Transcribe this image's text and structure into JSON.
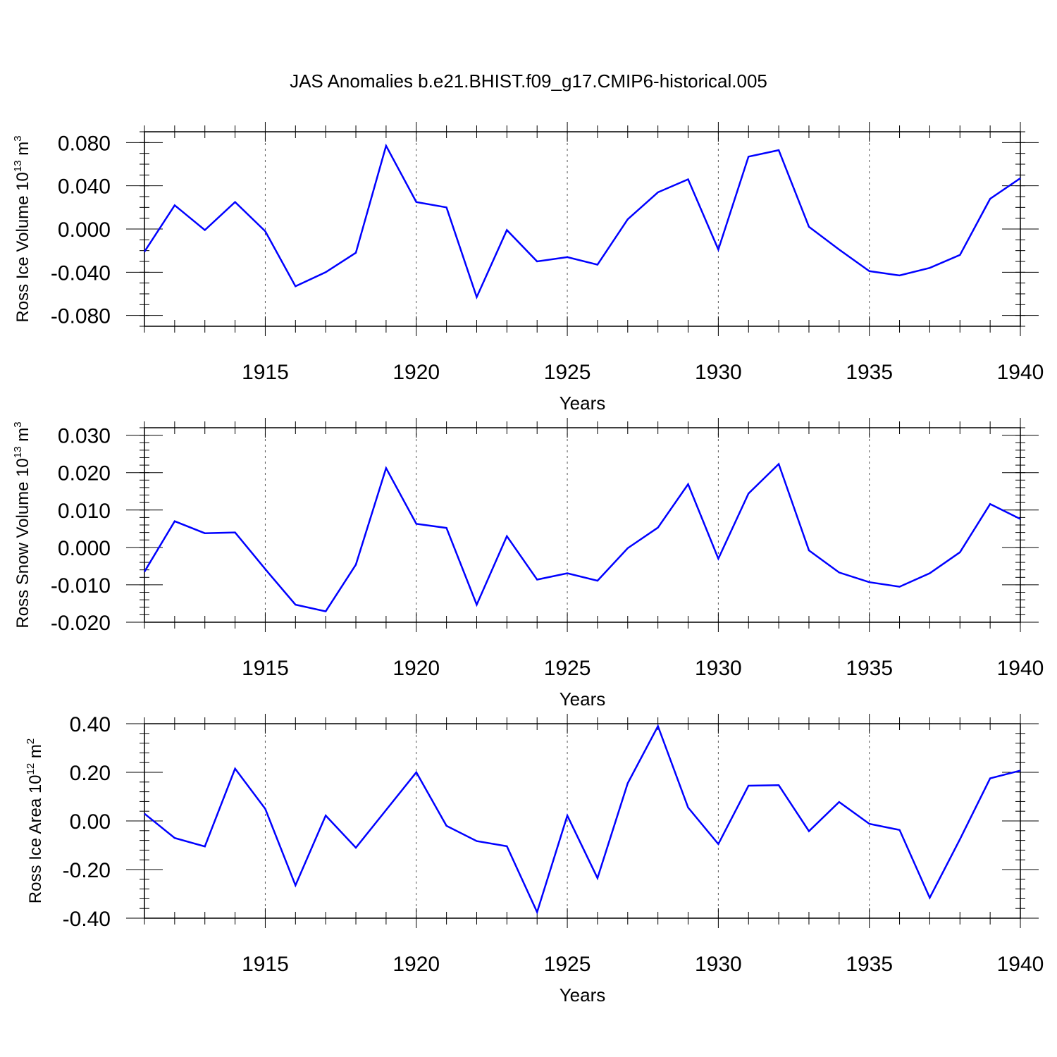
{
  "chart_data": [
    {
      "type": "line",
      "title": "JAS Anomalies b.e21.BHIST.f09_g17.CMIP6-historical.005",
      "xlabel": "Years",
      "ylabel": "Ross Ice Volume 10",
      "ylabel_exp": "13",
      "ylabel_unit": " m",
      "ylabel_unit_exp": "3",
      "xlim": [
        1911,
        1940
      ],
      "ylim": [
        -0.09,
        0.09
      ],
      "xticks": [
        "1915",
        "1920",
        "1925",
        "1930",
        "1935",
        "1940"
      ],
      "yticks": [
        "0.080",
        "0.040",
        "0.000",
        "-0.040",
        "-0.080"
      ],
      "grid": "dashed vertical at major x ticks",
      "color": "#0000ff",
      "x": [
        1911,
        1912,
        1913,
        1914,
        1915,
        1916,
        1917,
        1918,
        1919,
        1920,
        1921,
        1922,
        1923,
        1924,
        1925,
        1926,
        1927,
        1928,
        1929,
        1930,
        1931,
        1932,
        1933,
        1934,
        1935,
        1936,
        1937,
        1938,
        1939,
        1940
      ],
      "values": [
        -0.021,
        0.022,
        -0.001,
        0.025,
        -0.002,
        -0.053,
        -0.04,
        -0.022,
        0.077,
        0.025,
        0.02,
        -0.063,
        -0.001,
        -0.03,
        -0.026,
        -0.033,
        0.009,
        0.034,
        0.046,
        -0.019,
        0.067,
        0.073,
        0.002,
        -0.019,
        -0.039,
        -0.043,
        -0.036,
        -0.024,
        0.028,
        0.047
      ]
    },
    {
      "type": "line",
      "title": "",
      "xlabel": "Years",
      "ylabel": "Ross Snow Volume 10",
      "ylabel_exp": "13",
      "ylabel_unit": " m",
      "ylabel_unit_exp": "3",
      "xlim": [
        1911,
        1940
      ],
      "ylim": [
        -0.02,
        0.032
      ],
      "xticks": [
        "1915",
        "1920",
        "1925",
        "1930",
        "1935",
        "1940"
      ],
      "yticks": [
        "0.030",
        "0.020",
        "0.010",
        "0.000",
        "-0.010",
        "-0.020"
      ],
      "grid": "dashed vertical at major x ticks",
      "color": "#0000ff",
      "x": [
        1911,
        1912,
        1913,
        1914,
        1915,
        1916,
        1917,
        1918,
        1919,
        1920,
        1921,
        1922,
        1923,
        1924,
        1925,
        1926,
        1927,
        1928,
        1929,
        1930,
        1931,
        1932,
        1933,
        1934,
        1935,
        1936,
        1937,
        1938,
        1939,
        1940
      ],
      "values": [
        -0.0065,
        0.007,
        0.0038,
        0.004,
        -0.0058,
        -0.0153,
        -0.0171,
        -0.0046,
        0.0212,
        0.0063,
        0.0052,
        -0.0153,
        0.003,
        -0.0086,
        -0.0069,
        -0.0089,
        -0.0002,
        0.0053,
        0.0169,
        -0.003,
        0.0144,
        0.0223,
        -0.0008,
        -0.0067,
        -0.0093,
        -0.0105,
        -0.0069,
        -0.0013,
        0.0116,
        0.0076
      ]
    },
    {
      "type": "line",
      "title": "",
      "xlabel": "Years",
      "ylabel": "Ross Ice Area 10",
      "ylabel_exp": "12",
      "ylabel_unit": " m",
      "ylabel_unit_exp": "2",
      "xlim": [
        1911,
        1940
      ],
      "ylim": [
        -0.4,
        0.4
      ],
      "xticks": [
        "1915",
        "1920",
        "1925",
        "1930",
        "1935",
        "1940"
      ],
      "yticks": [
        "0.40",
        "0.20",
        "0.00",
        "-0.20",
        "-0.40"
      ],
      "grid": "dashed vertical at major x ticks",
      "color": "#0000ff",
      "x": [
        1911,
        1912,
        1913,
        1914,
        1915,
        1916,
        1917,
        1918,
        1919,
        1920,
        1921,
        1922,
        1923,
        1924,
        1925,
        1926,
        1927,
        1928,
        1929,
        1930,
        1931,
        1932,
        1933,
        1934,
        1935,
        1936,
        1937,
        1938,
        1939,
        1940
      ],
      "values": [
        0.03,
        -0.07,
        -0.105,
        0.215,
        0.05,
        -0.265,
        0.022,
        -0.11,
        0.045,
        0.2,
        -0.02,
        -0.083,
        -0.104,
        -0.375,
        0.022,
        -0.235,
        0.155,
        0.39,
        0.055,
        -0.095,
        0.145,
        0.147,
        -0.042,
        0.078,
        -0.012,
        -0.037,
        -0.316,
        -0.075,
        0.175,
        0.207
      ]
    }
  ]
}
